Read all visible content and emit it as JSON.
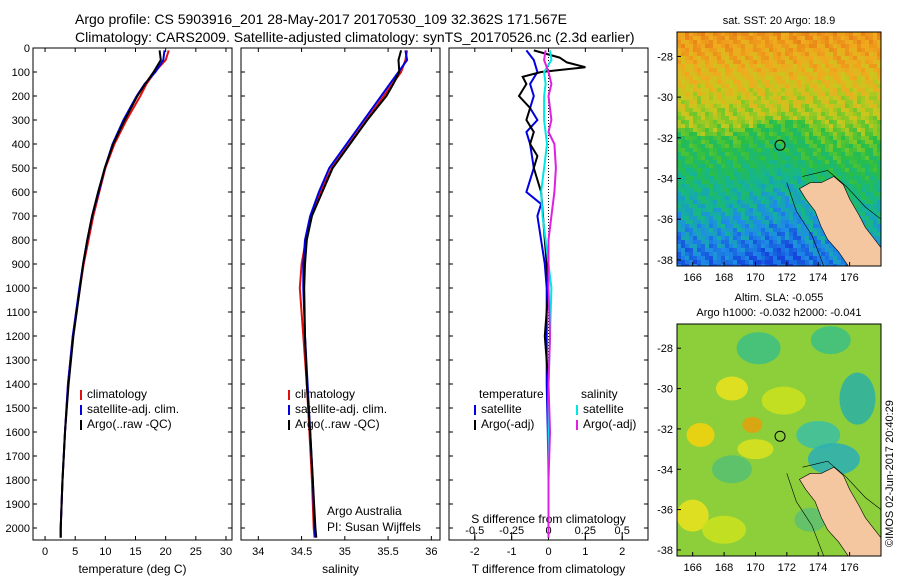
{
  "header": {
    "line1": "Argo profile: CS 5903916_201 28-May-2017 20170530_109 32.362S 171.567E",
    "line2": "Climatology: CARS2009. Satellite-adjusted climatology: synTS_20170526.nc (2.3d earlier)"
  },
  "side_label": "©IMOS 02-Jun-2017 20:40:29",
  "colors": {
    "climatology": "#e01010",
    "satellite": "#0000e0",
    "argo": "#000000",
    "sat_salinity": "#00e6e6",
    "argo_salinity": "#e020e0",
    "land": "#f5c7a0"
  },
  "chart_data": [
    {
      "type": "line",
      "xlabel": "temperature (deg C)",
      "xlim": [
        -2,
        31
      ],
      "xticks": [
        "0",
        "5",
        "10",
        "15",
        "20",
        "25",
        "30"
      ],
      "xtick_values": [
        0,
        5,
        10,
        15,
        20,
        25,
        30
      ],
      "ylim": [
        0,
        2050
      ],
      "yticks": [
        "0",
        "100",
        "200",
        "300",
        "400",
        "500",
        "600",
        "700",
        "800",
        "900",
        "1000",
        "1100",
        "1200",
        "1300",
        "1400",
        "1500",
        "1600",
        "1700",
        "1800",
        "1900",
        "2000"
      ],
      "ytick_values": [
        0,
        100,
        200,
        300,
        400,
        500,
        600,
        700,
        800,
        900,
        1000,
        1100,
        1200,
        1300,
        1400,
        1500,
        1600,
        1700,
        1800,
        1900,
        2000
      ],
      "legend": [
        "climatology",
        "satellite-adj. clim.",
        "Argo(..raw -QC)"
      ],
      "series": [
        {
          "name": "climatology",
          "depth": [
            10,
            50,
            100,
            150,
            200,
            300,
            400,
            500,
            600,
            700,
            800,
            900,
            1000,
            1200,
            1400,
            1600,
            1800,
            2000,
            2040
          ],
          "values": [
            20.5,
            20.0,
            18.2,
            16.8,
            15.8,
            13.5,
            11.5,
            10.0,
            9.0,
            8.0,
            7.2,
            6.4,
            5.8,
            4.6,
            3.8,
            3.3,
            2.9,
            2.6,
            2.6
          ]
        },
        {
          "name": "satellite-adj. clim.",
          "depth": [
            10,
            50,
            100,
            150,
            200,
            300,
            400,
            500,
            600,
            700,
            800,
            900,
            1000,
            1200,
            1400,
            1600,
            1800,
            2000,
            2040
          ],
          "values": [
            19.8,
            19.6,
            18.3,
            16.5,
            15.2,
            13.0,
            11.2,
            9.9,
            8.9,
            7.8,
            7.0,
            6.3,
            5.7,
            4.6,
            3.8,
            3.3,
            2.9,
            2.6,
            2.6
          ]
        },
        {
          "name": "Argo(..raw -QC)",
          "depth": [
            10,
            50,
            100,
            150,
            200,
            300,
            400,
            500,
            600,
            700,
            800,
            900,
            1000,
            1200,
            1400,
            1600,
            1800,
            2000,
            2040
          ],
          "values": [
            19.0,
            19.2,
            18.0,
            16.6,
            15.3,
            13.2,
            11.3,
            9.9,
            8.8,
            7.8,
            7.0,
            6.3,
            5.8,
            4.7,
            3.9,
            3.3,
            2.9,
            2.6,
            2.6
          ]
        }
      ]
    },
    {
      "type": "line",
      "xlabel": "salinity",
      "xlim": [
        33.8,
        36.1
      ],
      "xticks": [
        "34",
        "34.5",
        "35",
        "35.5",
        "36"
      ],
      "xtick_values": [
        34,
        34.5,
        35,
        35.5,
        36
      ],
      "ylim": [
        0,
        2050
      ],
      "legend": [
        "climatology",
        "satellite-adj. clim.",
        "Argo(..raw -QC)"
      ],
      "annotation": [
        "Argo Australia",
        "PI: Susan Wijffels"
      ],
      "series": [
        {
          "name": "climatology",
          "depth": [
            10,
            50,
            100,
            150,
            200,
            300,
            400,
            500,
            600,
            700,
            800,
            900,
            1000,
            1200,
            1400,
            1600,
            1800,
            2000,
            2040
          ],
          "values": [
            35.72,
            35.7,
            35.65,
            35.55,
            35.45,
            35.25,
            35.05,
            34.85,
            34.72,
            34.62,
            34.55,
            34.5,
            34.48,
            34.52,
            34.56,
            34.59,
            34.62,
            34.64,
            34.65
          ]
        },
        {
          "name": "satellite-adj. clim.",
          "depth": [
            10,
            50,
            100,
            150,
            200,
            300,
            400,
            500,
            600,
            700,
            800,
            900,
            1000,
            1200,
            1400,
            1600,
            1800,
            2000,
            2040
          ],
          "values": [
            35.7,
            35.72,
            35.62,
            35.52,
            35.42,
            35.22,
            35.02,
            34.82,
            34.7,
            34.6,
            34.54,
            34.52,
            34.52,
            34.54,
            34.57,
            34.6,
            34.63,
            34.65,
            34.66
          ]
        },
        {
          "name": "Argo(..raw -QC)",
          "depth": [
            10,
            50,
            100,
            150,
            200,
            300,
            400,
            500,
            600,
            700,
            800,
            900,
            1000,
            1200,
            1400,
            1600,
            1800,
            2000,
            2040
          ],
          "values": [
            35.65,
            35.62,
            35.63,
            35.56,
            35.48,
            35.26,
            35.06,
            34.86,
            34.74,
            34.62,
            34.56,
            34.54,
            34.53,
            34.54,
            34.56,
            34.6,
            34.63,
            34.66,
            34.67
          ]
        }
      ]
    },
    {
      "type": "line",
      "xlabel": "T difference from climatology",
      "xlim": [
        -2.7,
        2.7
      ],
      "xticks": [
        "-2",
        "-1",
        "0",
        "1",
        "2"
      ],
      "xtick_values": [
        -2,
        -1,
        0,
        1,
        2
      ],
      "s_axis_label": "S difference from climatology",
      "s_ticks": [
        "-0.5",
        "-0.25",
        "0",
        "0.25",
        "0.5"
      ],
      "s_tick_values": [
        -0.5,
        -0.25,
        0,
        0.25,
        0.5
      ],
      "s_scale": 4,
      "ylim": [
        0,
        2050
      ],
      "legend_groups": [
        {
          "heading": "temperature",
          "items": [
            "satellite",
            "Argo(-adj)"
          ]
        },
        {
          "heading": "salinity",
          "items": [
            "satellite",
            "Argo(-adj)"
          ]
        }
      ],
      "series": [
        {
          "name": "satellite",
          "group": "temperature",
          "depth": [
            10,
            50,
            100,
            150,
            200,
            250,
            300,
            350,
            400,
            500,
            600,
            650,
            700,
            800,
            900,
            1000,
            1200,
            1400,
            1600,
            1800,
            2000,
            2040
          ],
          "values": [
            -0.6,
            -0.4,
            -0.3,
            -0.5,
            -0.4,
            -0.5,
            -0.3,
            -0.6,
            -0.5,
            -0.4,
            -0.6,
            -0.2,
            -0.3,
            -0.2,
            -0.1,
            -0.05,
            -0.05,
            -0.05,
            -0.02,
            0.0,
            0.0,
            0.0
          ]
        },
        {
          "name": "Argo(-adj)",
          "group": "temperature",
          "depth": [
            10,
            40,
            60,
            80,
            100,
            120,
            150,
            200,
            250,
            300,
            350,
            400,
            450,
            500,
            600,
            700,
            800,
            900,
            1000,
            1200,
            1400,
            1600,
            1800,
            2000,
            2040
          ],
          "values": [
            -0.4,
            0.3,
            0.5,
            1.0,
            -0.2,
            -0.7,
            -0.6,
            -0.8,
            -0.5,
            -0.6,
            -0.4,
            -0.5,
            -0.3,
            -0.4,
            -0.2,
            -0.15,
            -0.1,
            -0.05,
            0.0,
            -0.1,
            0.0,
            0.0,
            0.0,
            0.0,
            0.0
          ]
        },
        {
          "name": "satellite",
          "group": "salinity",
          "depth": [
            10,
            50,
            100,
            150,
            200,
            300,
            400,
            500,
            600,
            700,
            800,
            900,
            1000,
            1200,
            1400,
            1600,
            1800,
            2000,
            2040
          ],
          "values": [
            0.01,
            0.02,
            -0.03,
            -0.02,
            -0.03,
            -0.03,
            -0.01,
            -0.03,
            -0.05,
            -0.04,
            -0.02,
            0.0,
            0.02,
            0.01,
            0.0,
            0.0,
            0.0,
            0.0,
            0.0
          ]
        },
        {
          "name": "Argo(-adj)",
          "group": "salinity",
          "depth": [
            10,
            50,
            100,
            150,
            200,
            300,
            350,
            400,
            500,
            600,
            700,
            800,
            900,
            1000,
            1200,
            1400,
            1600,
            1800,
            2000,
            2040
          ],
          "values": [
            -0.02,
            -0.03,
            0.0,
            0.02,
            0.0,
            0.02,
            0.0,
            0.04,
            0.05,
            0.04,
            0.02,
            0.0,
            0.0,
            0.0,
            0.01,
            0.0,
            0.01,
            0.0,
            0.0,
            0.0
          ]
        }
      ]
    },
    {
      "type": "heatmap",
      "title": "sat. SST: 20 Argo: 18.9",
      "xlim": [
        165,
        178
      ],
      "ylim": [
        -38.3,
        -26.8
      ],
      "xticks": [
        "166",
        "168",
        "170",
        "172",
        "174",
        "176"
      ],
      "xtick_values": [
        166,
        168,
        170,
        172,
        174,
        176
      ],
      "yticks": [
        "-28",
        "-30",
        "-32",
        "-34",
        "-36",
        "-38"
      ],
      "ytick_values": [
        -28,
        -30,
        -32,
        -34,
        -36,
        -38
      ],
      "float_position": [
        171.567,
        -32.362
      ]
    },
    {
      "type": "heatmap",
      "title": [
        "Altim. SLA: -0.055",
        "Argo h1000: -0.032 h2000: -0.041"
      ],
      "xlim": [
        165,
        178
      ],
      "ylim": [
        -38.3,
        -26.8
      ],
      "xticks": [
        "166",
        "168",
        "170",
        "172",
        "174",
        "176"
      ],
      "xtick_values": [
        166,
        168,
        170,
        172,
        174,
        176
      ],
      "yticks": [
        "-28",
        "-30",
        "-32",
        "-34",
        "-36",
        "-38"
      ],
      "ytick_values": [
        -28,
        -30,
        -32,
        -34,
        -36,
        -38
      ],
      "float_position": [
        171.567,
        -32.362
      ]
    }
  ]
}
